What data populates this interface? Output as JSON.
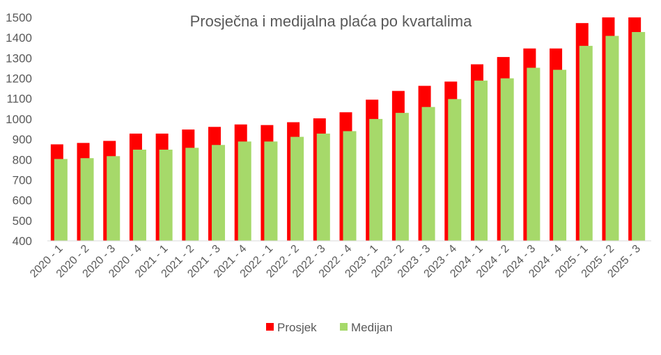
{
  "chart_data": {
    "type": "bar",
    "title": "Prosječna i medijalna plaća po kvartalima",
    "xlabel": "",
    "ylabel": "",
    "ylim": [
      400,
      1500
    ],
    "yticks": [
      400,
      500,
      600,
      700,
      800,
      900,
      1000,
      1100,
      1200,
      1300,
      1400,
      1500
    ],
    "legend_position": "bottom",
    "categories": [
      "2020 - 1",
      "2020 - 2",
      "2020 - 3",
      "2020 - 4",
      "2021 - 1",
      "2021 - 2",
      "2021 - 3",
      "2021 - 4",
      "2022 - 1",
      "2022 - 2",
      "2022 - 3",
      "2022 - 4",
      "2023 - 1",
      "2023 - 2",
      "2023 - 3",
      "2023 - 4",
      "2024 - 1",
      "2024 - 2",
      "2024 - 3",
      "2024 - 4",
      "2025 - 1",
      "2025 - 2",
      "2025 - 3"
    ],
    "series": [
      {
        "name": "Prosjek",
        "color": "#ff0000",
        "values": [
          875,
          882,
          892,
          928,
          928,
          948,
          961,
          973,
          970,
          984,
          1003,
          1033,
          1095,
          1138,
          1163,
          1184,
          1269,
          1305,
          1347,
          1347,
          1472,
          1500,
          1500
        ]
      },
      {
        "name": "Medijan",
        "color": "#a6d96a",
        "values": [
          803,
          807,
          817,
          849,
          849,
          858,
          872,
          889,
          889,
          912,
          928,
          940,
          1000,
          1030,
          1059,
          1098,
          1189,
          1200,
          1252,
          1242,
          1360,
          1409,
          1428
        ]
      }
    ]
  }
}
